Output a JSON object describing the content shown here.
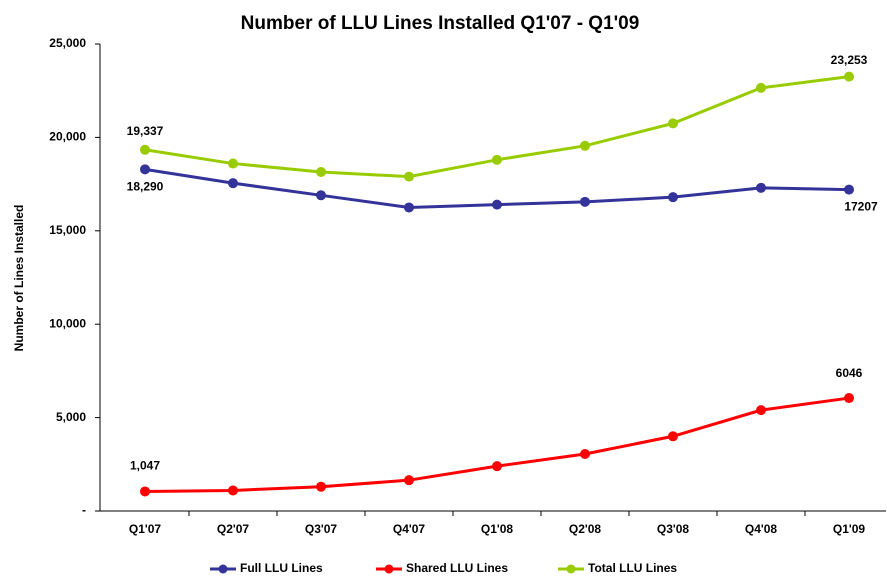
{
  "chart_data": {
    "type": "line",
    "title": "Number of LLU Lines Installed Q1'07 - Q1'09",
    "ylabel": "Number of Lines Installed",
    "categories": [
      "Q1'07",
      "Q2'07",
      "Q3'07",
      "Q4'07",
      "Q1'08",
      "Q2'08",
      "Q3'08",
      "Q4'08",
      "Q1'09"
    ],
    "series": [
      {
        "name": "Full LLU Lines",
        "color": "#333399",
        "values": [
          18290,
          17550,
          16900,
          16250,
          16400,
          16550,
          16800,
          17300,
          17207
        ],
        "value_labels": [
          "18,290",
          null,
          null,
          null,
          null,
          null,
          null,
          null,
          "17207"
        ]
      },
      {
        "name": "Shared LLU Lines",
        "color": "#ff0000",
        "values": [
          1047,
          1100,
          1300,
          1650,
          2400,
          3050,
          4000,
          5400,
          6046
        ],
        "value_labels": [
          "1,047",
          null,
          null,
          null,
          null,
          null,
          null,
          null,
          "6046"
        ]
      },
      {
        "name": "Total LLU Lines",
        "color": "#99cc00",
        "values": [
          19337,
          18600,
          18150,
          17900,
          18800,
          19550,
          20750,
          22650,
          23253
        ],
        "value_labels": [
          "19,337",
          null,
          null,
          null,
          null,
          null,
          null,
          null,
          "23,253"
        ]
      }
    ],
    "ylim": [
      0,
      25000
    ],
    "yticks": [
      {
        "value": 0,
        "label": "-"
      },
      {
        "value": 5000,
        "label": "5,000"
      },
      {
        "value": 10000,
        "label": "10,000"
      },
      {
        "value": 15000,
        "label": "15,000"
      },
      {
        "value": 20000,
        "label": "20,000"
      },
      {
        "value": 25000,
        "label": "25,000"
      }
    ],
    "legend": "bottom"
  }
}
